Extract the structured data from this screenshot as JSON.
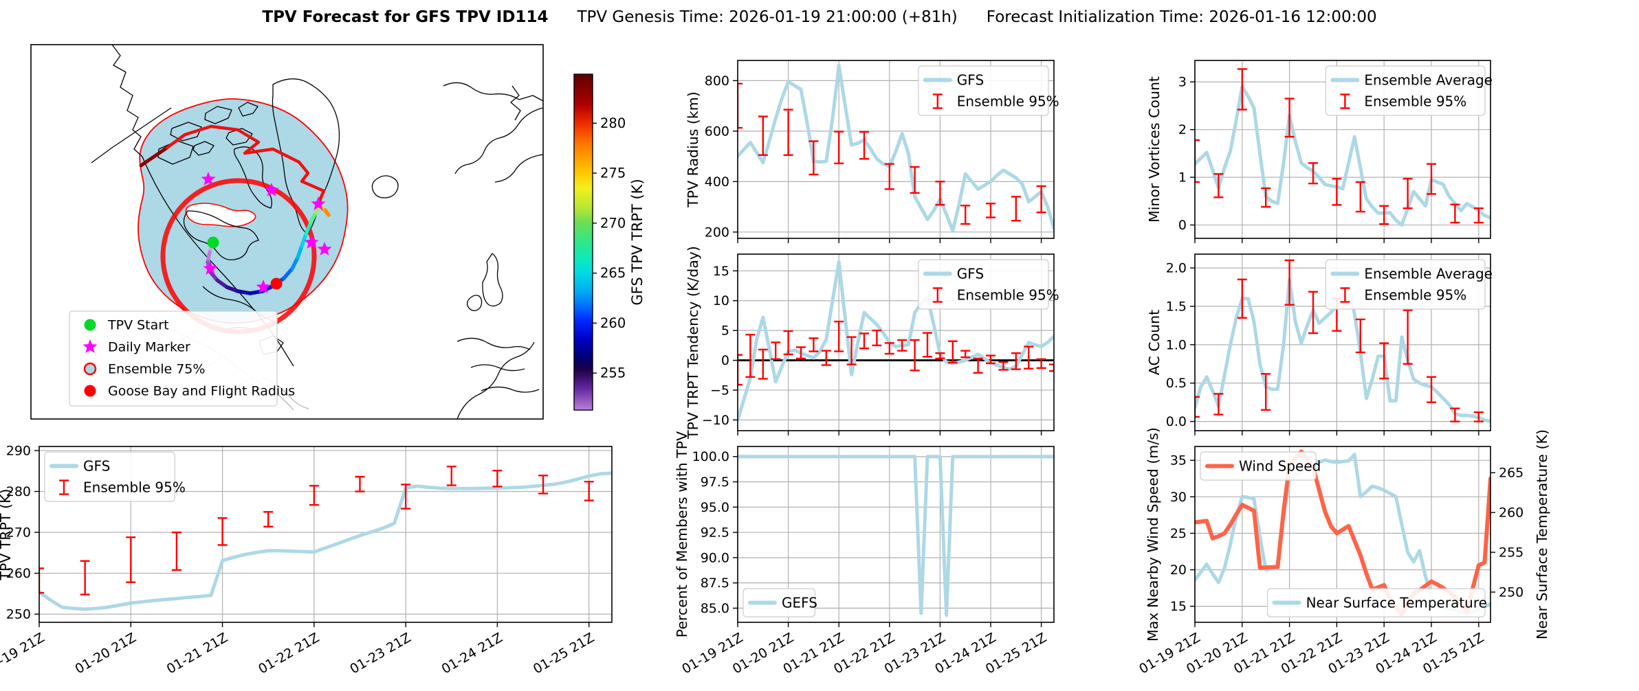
{
  "title": {
    "main": "TPV Forecast for GFS TPV ID114",
    "genesis": "TPV Genesis Time: 2026-01-19 21:00:00 (+81h)",
    "init": "Forecast Initialization Time: 2026-01-16 12:00:00"
  },
  "map": {
    "legend": {
      "items": [
        {
          "label": "TPV Start",
          "marker": "green-dot",
          "color": "#00d926"
        },
        {
          "label": "Daily Marker",
          "marker": "magenta-star",
          "color": "#ff00ff"
        },
        {
          "label": "Ensemble 75%",
          "marker": "ensemble-circle",
          "color": "#add8e6",
          "edge": "#ff0000"
        },
        {
          "label": "Goose Bay and Flight Radius",
          "marker": "red-dot",
          "color": "#ff0000"
        }
      ]
    },
    "colorbar": {
      "label": "GFS TPV TRPT (K)",
      "ticks": [
        280,
        275,
        270,
        265,
        260,
        255
      ],
      "vmin": 251.3,
      "vmax": 284.9
    }
  },
  "axes": {
    "x_ticklabels": [
      "01-19 21Z",
      "01-20 21Z",
      "01-21 21Z",
      "01-22 21Z",
      "01-23 21Z",
      "01-24 21Z",
      "01-25 21Z"
    ],
    "x_tick_idx": [
      0,
      8,
      16,
      24,
      32,
      40,
      48
    ],
    "n": 51
  },
  "chart_data": [
    {
      "id": "trpt",
      "type": "line",
      "ylabel": "TPV TRPT (K)",
      "ylim": [
        248.0,
        291.0
      ],
      "yticks": [
        250,
        260,
        270,
        280,
        290
      ],
      "ytick_labels": [
        "250",
        "260",
        "270",
        "280",
        "290"
      ],
      "legend_pos": "top-left",
      "show_xlabels": true,
      "zero_line": false,
      "series": [
        {
          "name": "GFS",
          "color": "#add8e6",
          "width": 5,
          "values": [
            255.4,
            253.4,
            251.7,
            251.4,
            251.2,
            251.4,
            251.7,
            252.2,
            252.7,
            253.0,
            253.3,
            253.6,
            253.8,
            254.1,
            254.3,
            254.6,
            263.1,
            263.9,
            264.6,
            265.1,
            265.5,
            265.5,
            265.4,
            265.3,
            265.2,
            266.2,
            267.2,
            268.2,
            269.2,
            270.1,
            271.0,
            272.2,
            280.8,
            281.3,
            281.0,
            280.8,
            280.7,
            280.7,
            280.7,
            280.8,
            280.8,
            280.9,
            281.0,
            281.2,
            281.5,
            281.8,
            282.3,
            283.0,
            283.8,
            284.3,
            284.5
          ]
        }
      ],
      "error": {
        "name": "Ensemble 95%",
        "color": "#ff0000",
        "idx": [
          0,
          4,
          8,
          12,
          16,
          20,
          24,
          28,
          32,
          36,
          40,
          44,
          48
        ],
        "lo": [
          255.2,
          254.8,
          257.8,
          260.8,
          266.9,
          271.4,
          276.7,
          280.0,
          275.8,
          281.5,
          281.2,
          279.5,
          277.8
        ],
        "hi": [
          261.2,
          263.0,
          268.8,
          270.0,
          273.5,
          275.0,
          281.4,
          283.6,
          281.7,
          286.1,
          285.1,
          283.9,
          282.4
        ]
      }
    },
    {
      "id": "radius",
      "type": "line",
      "ylabel": "TPV Radius (km)",
      "ylim": [
        175,
        880
      ],
      "yticks": [
        200,
        400,
        600,
        800
      ],
      "ytick_labels": [
        "200",
        "400",
        "600",
        "800"
      ],
      "legend_pos": "top-right",
      "show_xlabels": false,
      "zero_line": false,
      "series": [
        {
          "name": "GFS",
          "color": "#add8e6",
          "width": 5,
          "values": [
            500,
            528,
            555,
            515,
            475,
            560,
            650,
            730,
            795,
            780,
            765,
            630,
            480,
            478,
            480,
            650,
            860,
            700,
            545,
            552,
            565,
            530,
            490,
            470,
            460,
            520,
            590,
            510,
            340,
            295,
            250,
            285,
            330,
            270,
            205,
            310,
            430,
            400,
            370,
            385,
            400,
            425,
            445,
            430,
            415,
            390,
            320,
            340,
            360,
            300,
            215
          ]
        }
      ],
      "error": {
        "name": "Ensemble 95%",
        "color": "#ff0000",
        "idx": [
          0,
          4,
          8,
          12,
          16,
          20,
          24,
          28,
          32,
          36,
          40,
          44,
          48
        ],
        "lo": [
          613,
          505,
          505,
          428,
          472,
          490,
          370,
          355,
          308,
          232,
          258,
          245,
          278
        ],
        "hi": [
          788,
          658,
          685,
          560,
          598,
          597,
          470,
          458,
          400,
          305,
          313,
          340,
          382
        ]
      }
    },
    {
      "id": "tendency",
      "type": "line",
      "ylabel": "TPV TRPT Tendency (K/day)",
      "ylim": [
        -11.8,
        17.8
      ],
      "yticks": [
        -10,
        -5,
        0,
        5,
        10,
        15
      ],
      "ytick_labels": [
        "−10",
        "−5",
        "0",
        "5",
        "10",
        "15"
      ],
      "legend_pos": "top-right",
      "show_xlabels": false,
      "zero_line": true,
      "series": [
        {
          "name": "GFS",
          "color": "#add8e6",
          "width": 5,
          "values": [
            -10,
            -6.5,
            -3,
            3.5,
            7.2,
            2,
            -3.6,
            -1,
            1.5,
            1.7,
            1.2,
            0.8,
            0.4,
            1.5,
            3.5,
            10,
            16.5,
            7,
            -2.4,
            3,
            8,
            7,
            6,
            4.6,
            3,
            2.3,
            2.5,
            2.6,
            8,
            9.5,
            10.5,
            6,
            1,
            -0.3,
            -0.5,
            -0.3,
            0,
            0.5,
            1,
            0.3,
            -0.5,
            -0.8,
            -1.2,
            -1.5,
            -1,
            1,
            3,
            2.6,
            2.3,
            3,
            4
          ]
        }
      ],
      "error": {
        "name": "Ensemble 95%",
        "color": "#ff0000",
        "idx": [
          0,
          2,
          4,
          6,
          8,
          10,
          12,
          14,
          16,
          18,
          20,
          22,
          24,
          26,
          28,
          30,
          32,
          34,
          36,
          38,
          40,
          42,
          44,
          46,
          48,
          50
        ],
        "lo": [
          -4.1,
          -2.8,
          -3.1,
          0.2,
          1.0,
          0.3,
          1.5,
          -0.8,
          1.5,
          -0.7,
          2.0,
          2.5,
          1.1,
          1.6,
          -1.7,
          0.6,
          0.3,
          -0.4,
          0.5,
          -2.1,
          -0.5,
          -1.6,
          -1.5,
          -1.4,
          -1.3,
          -1.8
        ],
        "hi": [
          0.9,
          4.3,
          1.8,
          3.0,
          4.9,
          2.2,
          3.7,
          1.6,
          6.5,
          3.9,
          4.5,
          5.0,
          2.9,
          3.4,
          3.4,
          4.6,
          1.2,
          3.2,
          1.6,
          0.3,
          0.8,
          -0.3,
          1.2,
          2.3,
          0.2,
          -0.7
        ]
      }
    },
    {
      "id": "members",
      "type": "line",
      "ylabel": "Percent of Members with TPV",
      "ylim": [
        83.6,
        101.0
      ],
      "yticks": [
        85.0,
        87.5,
        90.0,
        92.5,
        95.0,
        97.5,
        100.0
      ],
      "ytick_labels": [
        "85.0",
        "87.5",
        "90.0",
        "92.5",
        "95.0",
        "97.5",
        "100.0"
      ],
      "legend_pos": "bottom-left",
      "show_xlabels": true,
      "zero_line": false,
      "series": [
        {
          "name": "GEFS",
          "color": "#add8e6",
          "width": 5,
          "values": [
            100,
            100,
            100,
            100,
            100,
            100,
            100,
            100,
            100,
            100,
            100,
            100,
            100,
            100,
            100,
            100,
            100,
            100,
            100,
            100,
            100,
            100,
            100,
            100,
            100,
            100,
            100,
            100,
            100,
            84.5,
            100,
            100,
            100,
            84.3,
            100,
            100,
            100,
            100,
            100,
            100,
            100,
            100,
            100,
            100,
            100,
            100,
            100,
            100,
            100,
            100,
            100
          ]
        }
      ],
      "error": null
    },
    {
      "id": "minor",
      "type": "line",
      "ylabel": "Minor Vortices Count",
      "ylim": [
        -0.28,
        3.45
      ],
      "yticks": [
        0,
        1,
        2,
        3
      ],
      "ytick_labels": [
        "0",
        "1",
        "2",
        "3"
      ],
      "legend_pos": "top-right",
      "show_xlabels": false,
      "zero_line": false,
      "series": [
        {
          "name": "Ensemble Average",
          "color": "#add8e6",
          "width": 5,
          "values": [
            1.28,
            1.4,
            1.52,
            1.15,
            0.78,
            1.2,
            1.55,
            2.2,
            2.9,
            2.7,
            2.45,
            1.5,
            0.6,
            0.5,
            0.45,
            1.3,
            2.3,
            1.75,
            1.3,
            1.2,
            1.13,
            1,
            0.85,
            0.82,
            0.8,
            0.76,
            1.3,
            1.85,
            1.2,
            0.55,
            0.38,
            0.25,
            0.25,
            0.26,
            0.1,
            0,
            0.35,
            0.7,
            0.55,
            0.4,
            0.95,
            0.9,
            0.85,
            0.6,
            0.45,
            0.3,
            0.45,
            0.38,
            0.3,
            0.2,
            0.15
          ]
        }
      ],
      "error": {
        "name": "Ensemble 95%",
        "color": "#ff0000",
        "idx": [
          0,
          4,
          8,
          12,
          16,
          20,
          24,
          28,
          32,
          36,
          40,
          44,
          48
        ],
        "lo": [
          0.9,
          0.58,
          2.42,
          0.38,
          1.85,
          0.87,
          0.42,
          0.28,
          0.02,
          0.35,
          0.65,
          0.05,
          0.05
        ],
        "hi": [
          1.78,
          1.07,
          3.27,
          0.77,
          2.65,
          1.3,
          0.97,
          0.9,
          0.4,
          0.97,
          1.28,
          0.43,
          0.35
        ]
      }
    },
    {
      "id": "ac",
      "type": "line",
      "ylabel": "AC Count",
      "ylim": [
        -0.12,
        2.18
      ],
      "yticks": [
        0.0,
        0.5,
        1.0,
        1.5,
        2.0
      ],
      "ytick_labels": [
        "0.0",
        "0.5",
        "1.0",
        "1.5",
        "2.0"
      ],
      "legend_pos": "top-right",
      "show_xlabels": false,
      "zero_line": false,
      "series": [
        {
          "name": "Ensemble Average",
          "color": "#add8e6",
          "width": 5,
          "values": [
            0.18,
            0.45,
            0.58,
            0.4,
            0.2,
            0.6,
            1,
            1.35,
            1.6,
            1.6,
            1.3,
            0.75,
            0.45,
            0.42,
            0.42,
            1,
            1.85,
            1.3,
            1.02,
            1.25,
            1.45,
            1.28,
            1.35,
            1.42,
            1.5,
            1.65,
            1.8,
            1.4,
            0.9,
            0.3,
            0.55,
            0.85,
            0.85,
            0.27,
            0.27,
            1.1,
            0.8,
            0.55,
            0.5,
            0.47,
            0.45,
            0.38,
            0.3,
            0.22,
            0.1,
            0.08,
            0.08,
            0.07,
            0.05,
            0.02,
            0
          ]
        }
      ],
      "error": {
        "name": "Ensemble 95%",
        "color": "#ff0000",
        "idx": [
          0,
          4,
          8,
          12,
          16,
          20,
          24,
          28,
          32,
          36,
          40,
          44,
          48
        ],
        "lo": [
          0.06,
          0.09,
          1.35,
          0.15,
          1.52,
          1.15,
          1.18,
          0.9,
          0.56,
          0.75,
          0.25,
          0.0,
          0.0
        ],
        "hi": [
          0.32,
          0.36,
          1.85,
          0.62,
          2.1,
          1.69,
          1.6,
          1.33,
          1.02,
          1.45,
          0.58,
          0.17,
          0.12
        ]
      }
    },
    {
      "id": "windtemp",
      "type": "line",
      "dual": true,
      "ylabel": "Max Nearby Wind Speed (m/s)",
      "ylabel_color": "#ff6347",
      "tick_color": "#ff6347",
      "ylim": [
        12.8,
        36.9
      ],
      "yticks": [
        15,
        20,
        25,
        30,
        35
      ],
      "ytick_labels": [
        "15",
        "20",
        "25",
        "30",
        "35"
      ],
      "right": {
        "ylabel": "Near Surface Temperature (K)",
        "color": "#4169e1",
        "ylim": [
          246.2,
          268.3
        ],
        "yticks": [
          250,
          255,
          260,
          265
        ],
        "ytick_labels": [
          "250",
          "255",
          "260",
          "265"
        ]
      },
      "show_xlabels": true,
      "zero_line": false,
      "series": [
        {
          "name": "Wind Speed",
          "color": "#ff6347",
          "width": 6,
          "axis": "left",
          "values": [
            26.5,
            26.6,
            26.7,
            24.3,
            24.6,
            25,
            26.2,
            27.6,
            28.9,
            28.5,
            28.1,
            20.3,
            20.3,
            20.35,
            20.4,
            28,
            34.4,
            35.3,
            36.2,
            35.2,
            34,
            31,
            28,
            26,
            25,
            25.5,
            26,
            24,
            22,
            19.5,
            17.3,
            17.6,
            17.9,
            16,
            14.8,
            13.9,
            15.3,
            16.8,
            17.2,
            17.8,
            18.4,
            18,
            17.5,
            16.9,
            16.3,
            15.2,
            14.2,
            17.5,
            20.6,
            21,
            32.5
          ]
        },
        {
          "name": "Near Surface Temperature",
          "color": "#add8e6",
          "width": 5,
          "axis": "right",
          "values": [
            251.5,
            252.5,
            253.5,
            252.3,
            251.2,
            253,
            256,
            259.5,
            262,
            261.9,
            261.7,
            257,
            252.8,
            252.9,
            253,
            259.5,
            264.3,
            264.7,
            265.1,
            265.5,
            265.9,
            266.3,
            266.6,
            266.4,
            266.3,
            266.4,
            266.5,
            267.3,
            262,
            262.6,
            263.3,
            263.1,
            262.8,
            262.4,
            262,
            258.5,
            255,
            253.8,
            255.2,
            252,
            249.5,
            248.3,
            248.1,
            247.9,
            247.8,
            247.5,
            247.2,
            247.5,
            247.8,
            248.2,
            248.5
          ]
        }
      ],
      "error": null,
      "legends": [
        {
          "pos": "top-left",
          "entries": [
            "Wind Speed"
          ]
        },
        {
          "pos": "bottom-right",
          "entries": [
            "Near Surface Temperature"
          ]
        }
      ]
    }
  ]
}
